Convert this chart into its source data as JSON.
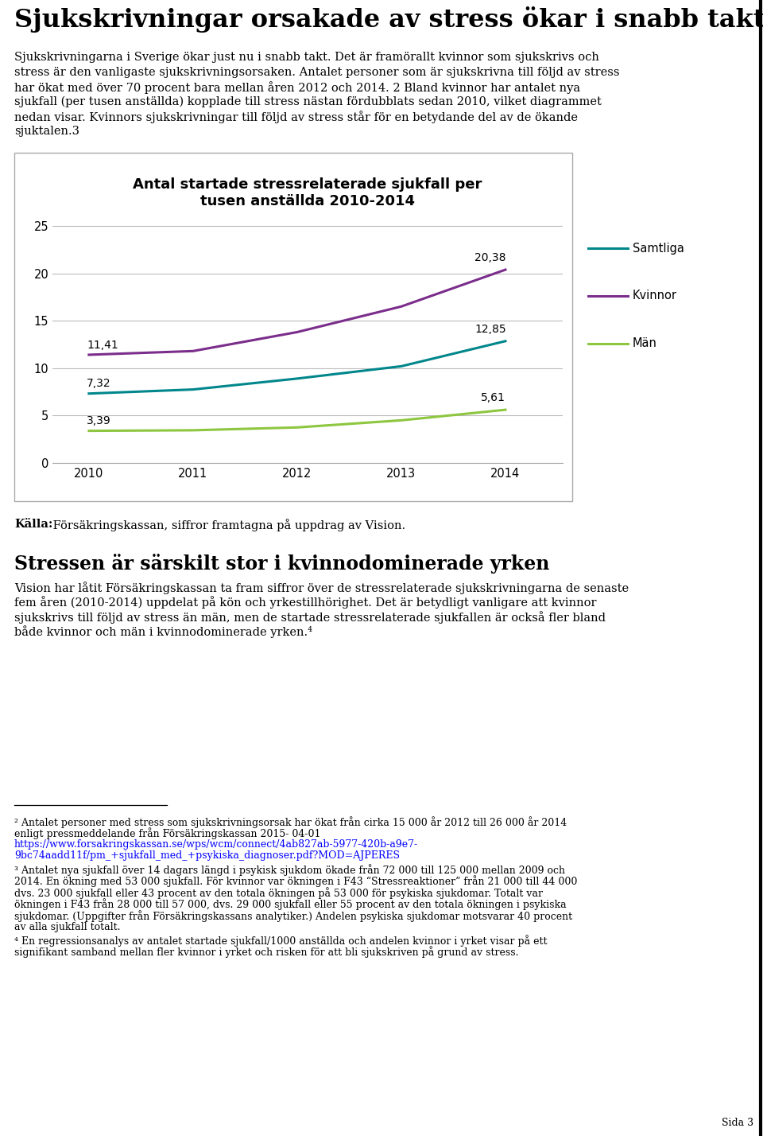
{
  "title": "Antal startade stressrelaterade sjukfall per\ntusen anställda 2010-2014",
  "years": [
    2010,
    2011,
    2012,
    2013,
    2014
  ],
  "samtliga": [
    7.32,
    7.75,
    8.9,
    10.2,
    12.85
  ],
  "kvinnor": [
    11.41,
    11.8,
    13.8,
    16.5,
    20.38
  ],
  "man": [
    3.39,
    3.45,
    3.75,
    4.5,
    5.61
  ],
  "samtliga_color": "#00868B",
  "kvinnor_color": "#7B2D8B",
  "man_color": "#8DC63F",
  "yticks": [
    0,
    5,
    10,
    15,
    20,
    25
  ],
  "heading1": "Sjukskrivningar orsakade av stress ökar i snabb takt",
  "para1": [
    "Sjukskrivningarna i Sverige ökar just nu i snabb takt. Det är framörallt kvinnor som sjukskrivs och",
    "stress är den vanligaste sjukskrivningsorsaken. Antalet personer som är sjukskrivna till följd av stress",
    "har ökat med över 70 procent bara mellan åren 2012 och 2014. 2 Bland kvinnor har antalet nya",
    "sjukfall (per tusen anställda) kopplade till stress nästan fördubblats sedan 2010, vilket diagrammet",
    "nedan visar. Kvinnors sjukskrivningar till följd av stress står för en betydande del av de ökande",
    "sjuktalen.3"
  ],
  "source_bold": "Källa:",
  "source_rest": " Försäkringskassan, siffror framtagna på uppdrag av Vision.",
  "heading2": "Stressen är särskilt stor i kvinnodominerade yrken",
  "para2": [
    "Vision har låtit Försäkringskassan ta fram siffror över de stressrelaterade sjukskrivningarna de senaste",
    "fem åren (2010-2014) uppdelat på kön och yrkestillhörighet. Det är betydligt vanligare att kvinnor",
    "sjukskrivs till följd av stress än män, men de startade stressrelaterade sjukfallen är också fler bland",
    "både kvinnor och män i kvinnodominerade yrken.⁴"
  ],
  "legend_labels": [
    "Samtliga",
    "Kvinnor",
    "Män"
  ],
  "ann_sam_2010": "7,32",
  "ann_kvin_2010": "11,41",
  "ann_man_2010": "3,39",
  "ann_sam_2014": "12,85",
  "ann_kvin_2014": "20,38",
  "ann_man_2014": "5,61",
  "fn2_l1": "² Antalet personer med stress som sjukskrivningsorsak har ökat från cirka 15 000 år 2012 till 26 000 år 2014",
  "fn2_l2": "enligt pressmeddelande från Försäkringskassan 2015- 04-01",
  "fn2_link1": "https://www.forsakringskassan.se/wps/wcm/connect/4ab827ab-5977-420b-a9e7-",
  "fn2_link2": "9bc74aadd11f/pm_+sjukfall_med_+psykiska_diagnoser.pdf?MOD=AJPERES",
  "fn3": [
    "³ Antalet nya sjukfall över 14 dagars längd i psykisk sjukdom ökade från 72 000 till 125 000 mellan 2009 och",
    "2014. En ökning med 53 000 sjukfall. För kvinnor var ökningen i F43 “Stressreaktioner” från 21 000 till 44 000",
    "dvs. 23 000 sjukfall eller 43 procent av den totala ökningen på 53 000 för psykiska sjukdomar. Totalt var",
    "ökningen i F43 från 28 000 till 57 000, dvs. 29 000 sjukfall eller 55 procent av den totala ökningen i psykiska",
    "sjukdomar. (Uppgifter från Försäkringskassans analytiker.) Andelen psykiska sjukdomar motsvarar 40 procent",
    "av alla sjukfall totalt."
  ],
  "fn4": [
    "⁴ En regressionsanalys av antalet startade sjukfall/1000 anställda och andelen kvinnor i yrket visar på ett",
    "signifikant samband mellan fler kvinnor i yrket och risken för att bli sjukskriven på grund av stress."
  ],
  "page_number": "Sida 3"
}
